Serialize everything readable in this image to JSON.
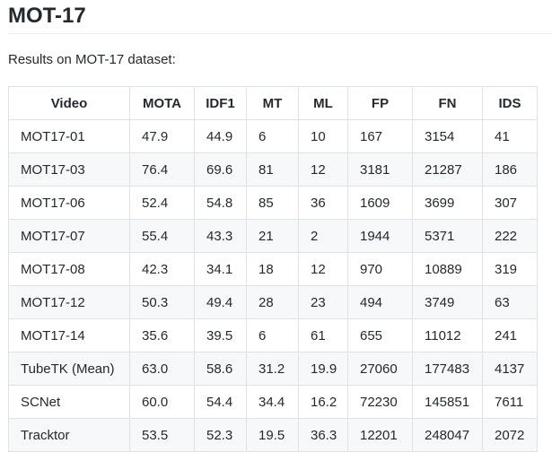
{
  "page": {
    "title": "MOT-17",
    "intro": "Results on MOT-17 dataset:"
  },
  "table": {
    "headers": [
      "Video",
      "MOTA",
      "IDF1",
      "MT",
      "ML",
      "FP",
      "FN",
      "IDS"
    ],
    "rows": [
      [
        "MOT17-01",
        "47.9",
        "44.9",
        "6",
        "10",
        "167",
        "3154",
        "41"
      ],
      [
        "MOT17-03",
        "76.4",
        "69.6",
        "81",
        "12",
        "3181",
        "21287",
        "186"
      ],
      [
        "MOT17-06",
        "52.4",
        "54.8",
        "85",
        "36",
        "1609",
        "3699",
        "307"
      ],
      [
        "MOT17-07",
        "55.4",
        "43.3",
        "21",
        "2",
        "1944",
        "5371",
        "222"
      ],
      [
        "MOT17-08",
        "42.3",
        "34.1",
        "18",
        "12",
        "970",
        "10889",
        "319"
      ],
      [
        "MOT17-12",
        "50.3",
        "49.4",
        "28",
        "23",
        "494",
        "3749",
        "63"
      ],
      [
        "MOT17-14",
        "35.6",
        "39.5",
        "6",
        "61",
        "655",
        "11012",
        "241"
      ],
      [
        "TubeTK (Mean)",
        "63.0",
        "58.6",
        "31.2",
        "19.9",
        "27060",
        "177483",
        "4137"
      ],
      [
        "SCNet",
        "60.0",
        "54.4",
        "34.4",
        "16.2",
        "72230",
        "145851",
        "7611"
      ],
      [
        "Tracktor",
        "53.5",
        "52.3",
        "19.5",
        "36.3",
        "12201",
        "248047",
        "2072"
      ]
    ]
  }
}
